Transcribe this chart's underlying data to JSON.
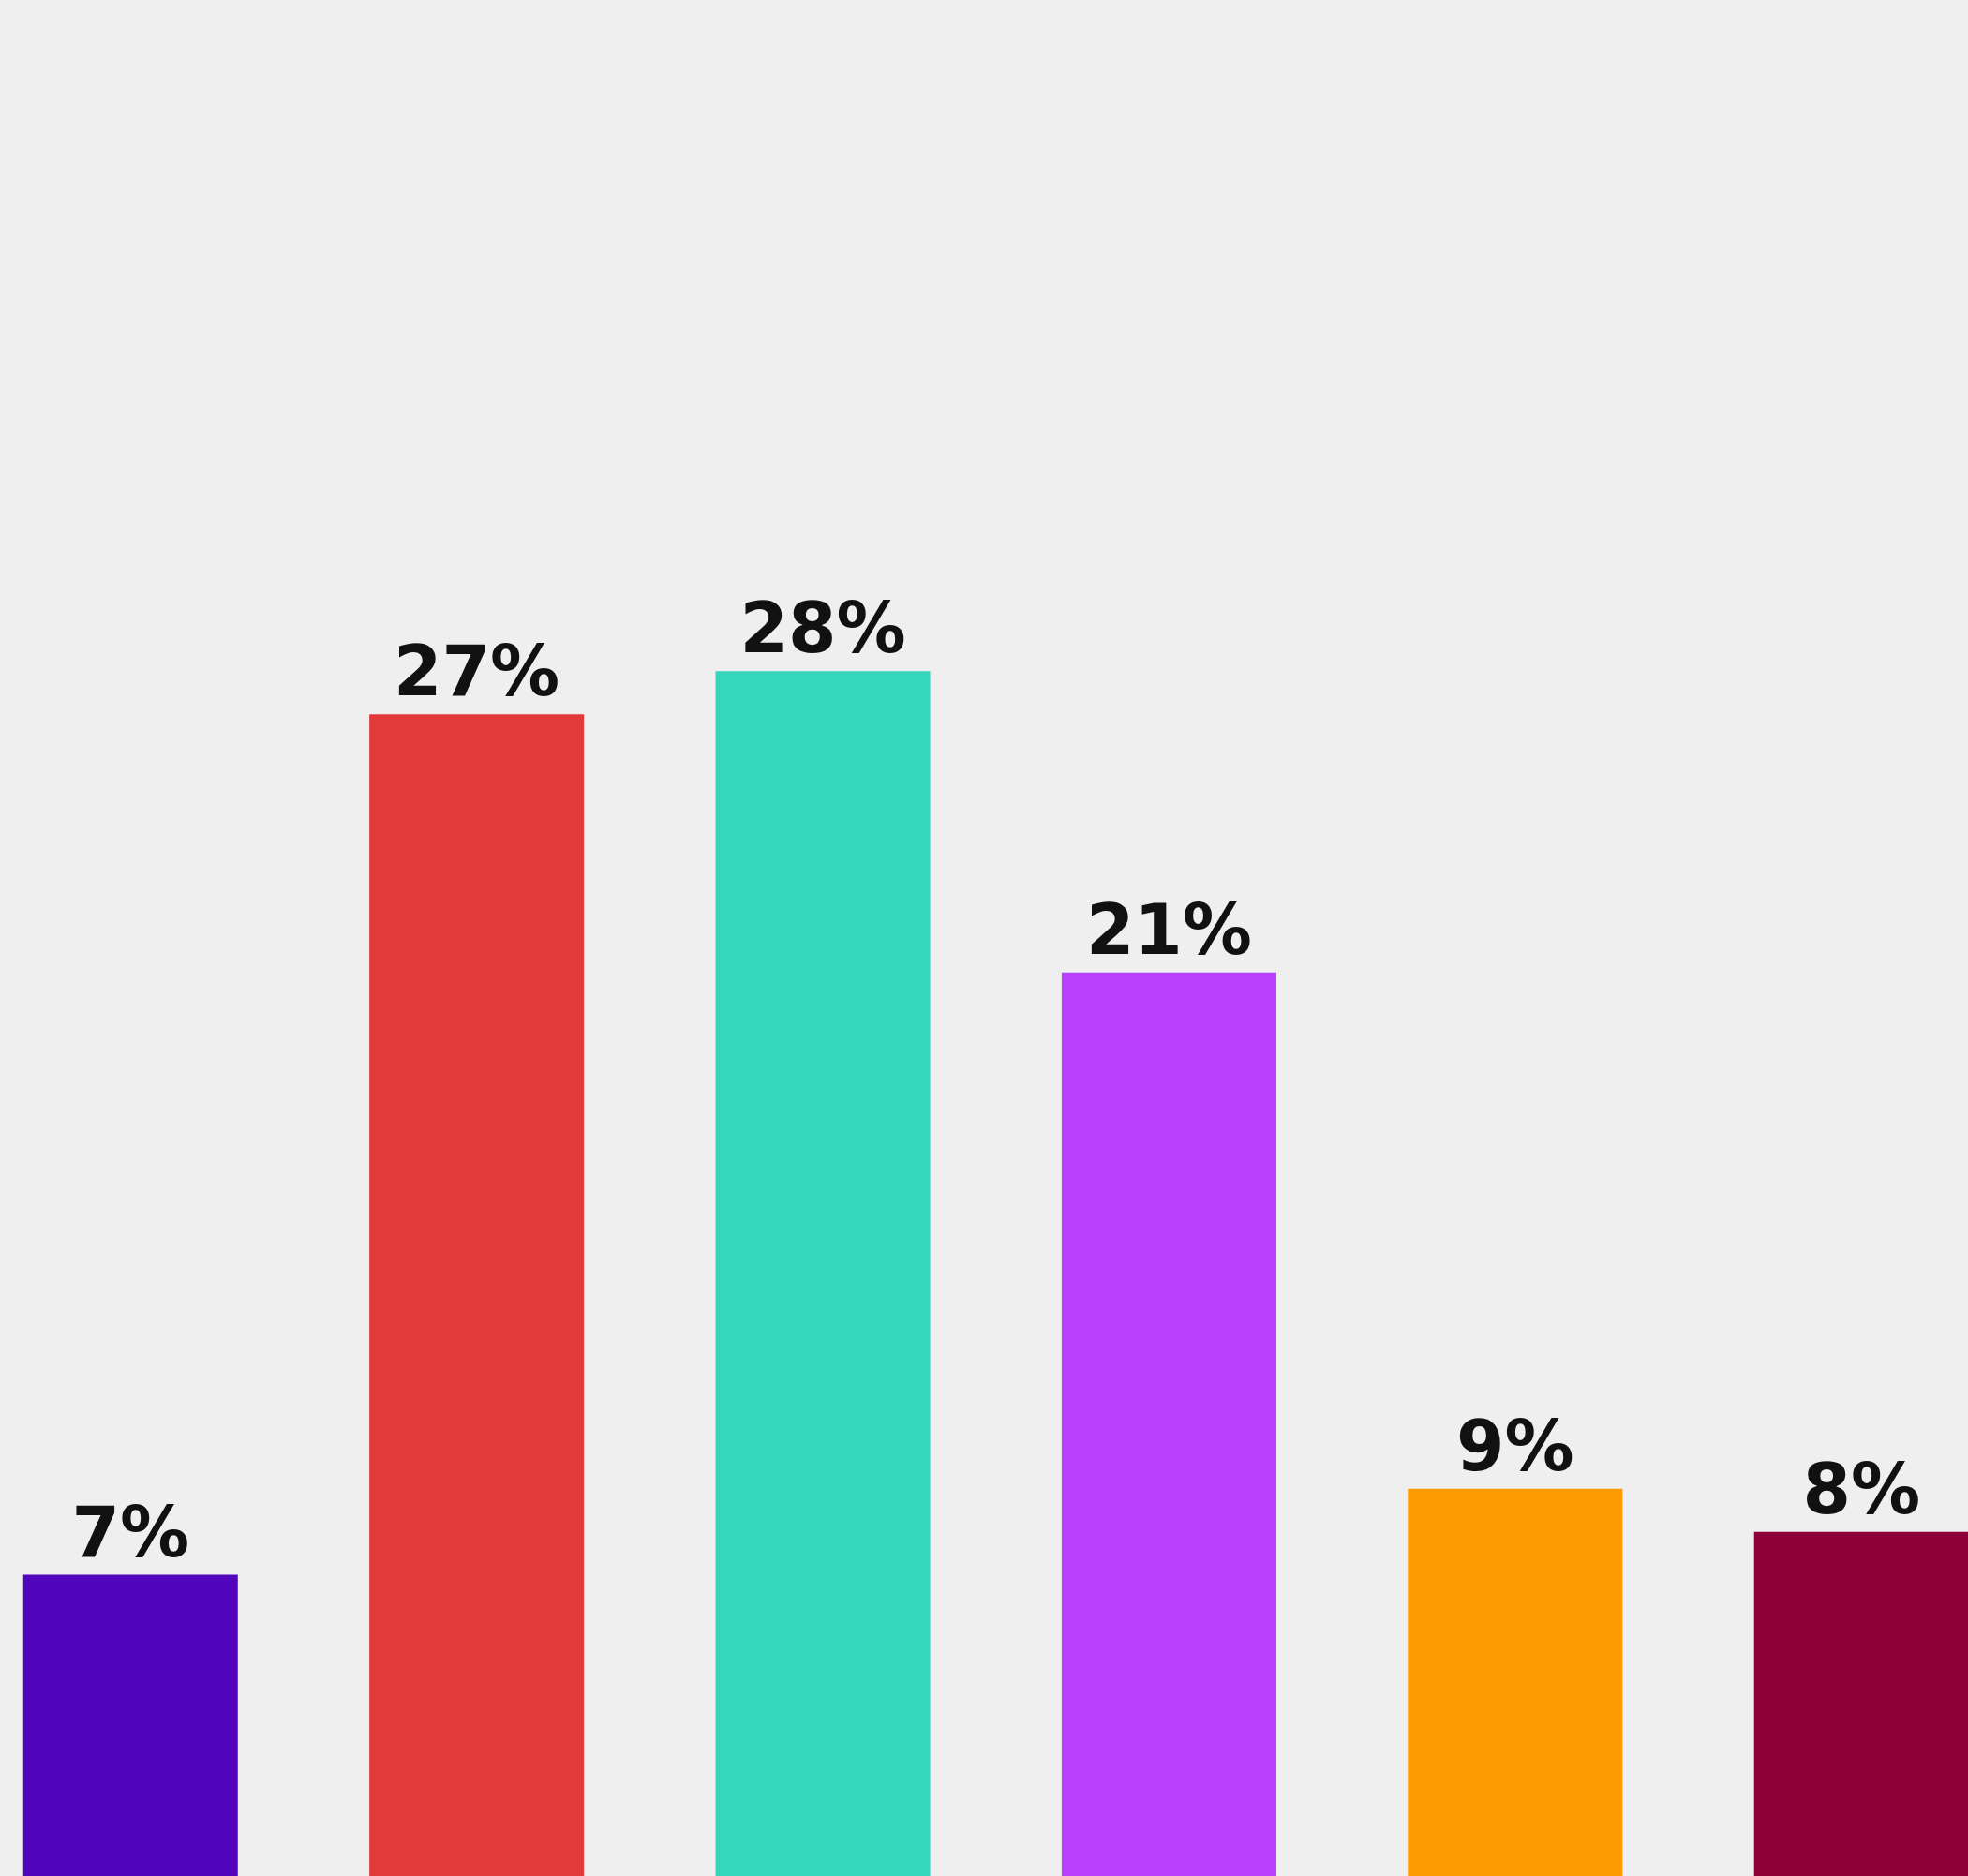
{
  "chart_data": {
    "type": "bar",
    "categories": [
      null,
      null,
      null,
      null,
      null,
      null
    ],
    "values": [
      7,
      27,
      28,
      21,
      9,
      8
    ],
    "value_labels": [
      "7%",
      "27%",
      "28%",
      "21%",
      "9%",
      "8%"
    ],
    "colors": [
      "#5106bd",
      "#e23a3a",
      "#36d6bd",
      "#b93ffd",
      "#fe9a02",
      "#8d0037"
    ],
    "ylim": [
      0,
      43.6
    ]
  }
}
